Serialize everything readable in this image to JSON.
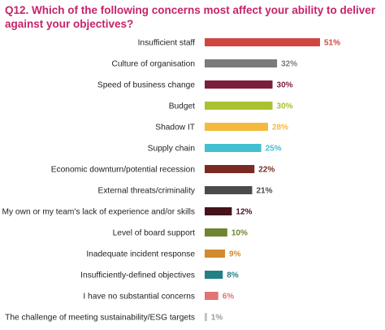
{
  "chart_data": {
    "type": "bar",
    "orientation": "horizontal",
    "title": "Q12. Which of the following concerns most affect your ability to deliver against your objectives?",
    "categories": [
      "Insufficient staff",
      "Culture of organisation",
      "Speed of business change",
      "Budget",
      "Shadow IT",
      "Supply chain",
      "Economic downturn/potential recession",
      "External threats/criminality",
      "My own or my team's lack of experience and/or skills",
      "Level of board support",
      "Inadequate incident response",
      "Insufficiently-defined objectives",
      "I have no substantial concerns",
      "The challenge of meeting sustainability/ESG targets"
    ],
    "values": [
      51,
      32,
      30,
      30,
      28,
      25,
      22,
      21,
      12,
      10,
      9,
      8,
      6,
      1
    ],
    "value_labels": [
      "51%",
      "32%",
      "30%",
      "30%",
      "28%",
      "25%",
      "22%",
      "21%",
      "12%",
      "10%",
      "9%",
      "8%",
      "6%",
      "1%"
    ],
    "colors": [
      "#d0463f",
      "#7b7b7b",
      "#7b1f3c",
      "#aac231",
      "#f4b93f",
      "#43bfcf",
      "#7a2a22",
      "#4b4b4d",
      "#45131b",
      "#6f8530",
      "#d28a2e",
      "#257f86",
      "#e07571",
      "#bfbfbf"
    ],
    "label_colors": [
      "#d0463f",
      "#7b7b7b",
      "#7b1f3c",
      "#aac231",
      "#f4b93f",
      "#43bfcf",
      "#7a2a22",
      "#4b4b4d",
      "#45131b",
      "#6f8530",
      "#d28a2e",
      "#257f86",
      "#e07571",
      "#9a9a9a"
    ],
    "xlim": [
      0,
      51
    ],
    "grid": false,
    "legend": "none"
  }
}
